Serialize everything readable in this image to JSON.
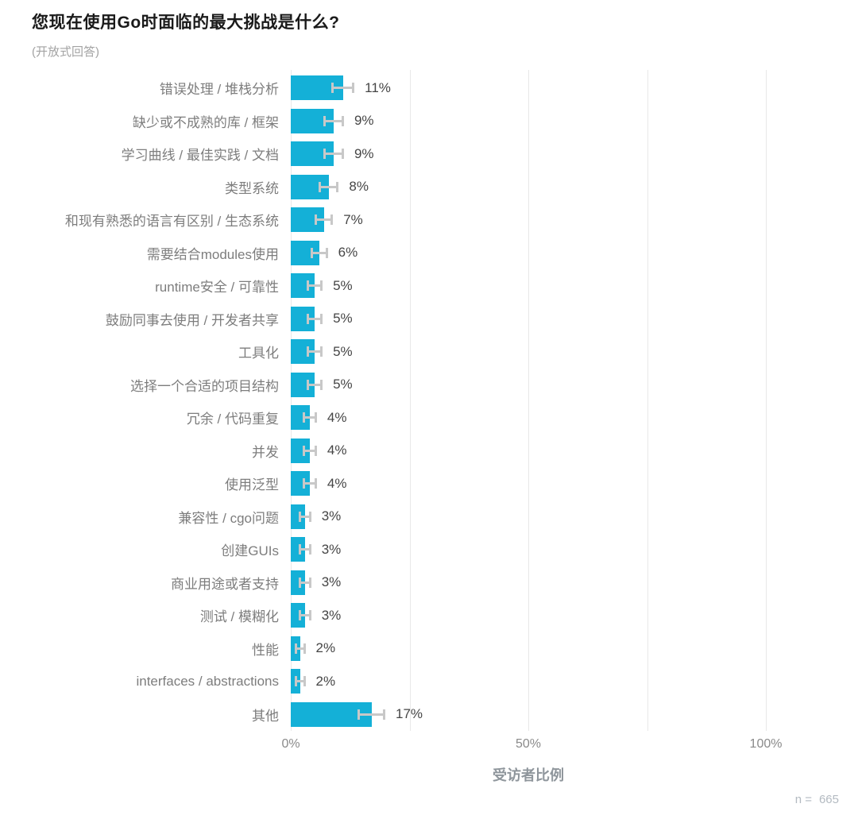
{
  "chart_data": {
    "type": "bar",
    "orientation": "horizontal",
    "title": "您现在使用Go时面临的最大挑战是什么?",
    "subtitle": "(开放式回答)",
    "xlabel": "受访者比例",
    "categories": [
      "错误处理 / 堆栈分析",
      "缺少或不成熟的库 / 框架",
      "学习曲线 / 最佳实践 / 文档",
      "类型系统",
      "和现有熟悉的语言有区别 / 生态系统",
      "需要结合modules使用",
      "runtime安全 / 可靠性",
      "鼓励同事去使用 / 开发者共享",
      "工具化",
      "选择一个合适的项目结构",
      "冗余 / 代码重复",
      "并发",
      "使用泛型",
      "兼容性 / cgo问题",
      "创建GUIs",
      "商业用途或者支持",
      "测试 / 模糊化",
      "性能",
      "interfaces / abstractions",
      "其他"
    ],
    "values": [
      11,
      9,
      9,
      8,
      7,
      6,
      5,
      5,
      5,
      5,
      4,
      4,
      4,
      3,
      3,
      3,
      3,
      2,
      2,
      17
    ],
    "value_labels": [
      "11%",
      "9%",
      "9%",
      "8%",
      "7%",
      "6%",
      "5%",
      "5%",
      "5%",
      "5%",
      "4%",
      "4%",
      "4%",
      "3%",
      "3%",
      "3%",
      "3%",
      "2%",
      "2%",
      "17%"
    ],
    "error_bars": [
      2.4,
      2.2,
      2.2,
      2.1,
      1.9,
      1.8,
      1.7,
      1.7,
      1.7,
      1.7,
      1.5,
      1.5,
      1.5,
      1.3,
      1.3,
      1.3,
      1.3,
      1.1,
      1.1,
      2.9
    ],
    "xlim": [
      0,
      100
    ],
    "x_ticks": [
      {
        "value": 0,
        "label": "0%"
      },
      {
        "value": 50,
        "label": "50%"
      },
      {
        "value": 100,
        "label": "100%"
      }
    ],
    "gridlines": [
      0,
      25,
      50,
      75,
      100
    ],
    "legend": "none",
    "grid": "vertical",
    "n_label": "n =",
    "n_value": "665",
    "bar_color": "#14B0D7",
    "error_bar_color": "#C8C8C8",
    "grid_color": "#E8E8E8"
  }
}
